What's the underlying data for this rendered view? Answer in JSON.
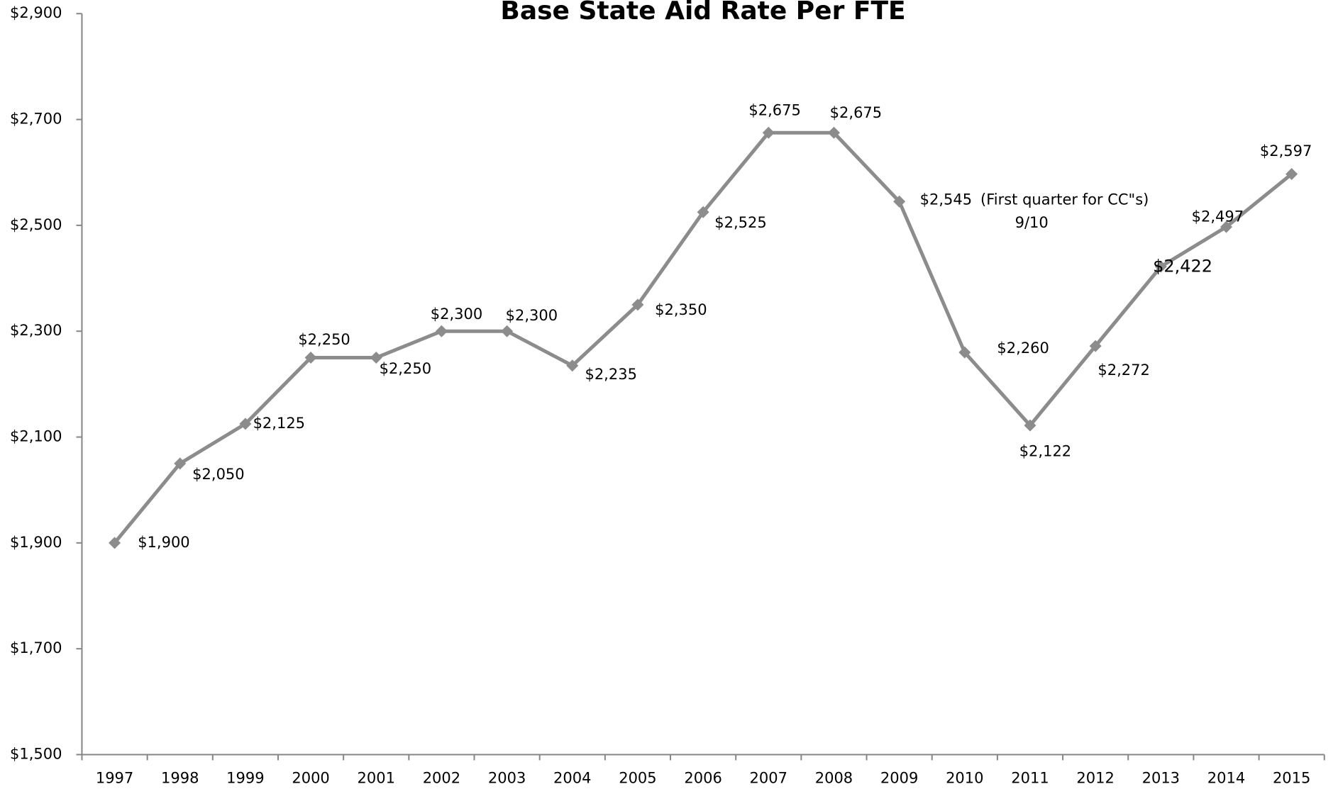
{
  "chart_data": {
    "type": "line",
    "title": "Base State Aid Rate Per FTE",
    "categories": [
      "1997",
      "1998",
      "1999",
      "2000",
      "2001",
      "2002",
      "2003",
      "2004",
      "2005",
      "2006",
      "2007",
      "2008",
      "2009",
      "2010",
      "2011",
      "2012",
      "2013",
      "2014",
      "2015"
    ],
    "series": [
      {
        "name": "Base State Aid Rate Per FTE",
        "color": "#8c8c8c",
        "values": [
          1900,
          2050,
          2125,
          2250,
          2250,
          2300,
          2300,
          2235,
          2350,
          2525,
          2675,
          2675,
          2545,
          2260,
          2122,
          2272,
          2422,
          2497,
          2597
        ],
        "value_labels": [
          "$1,900",
          "$2,050",
          "$2,125",
          "$2,250",
          "$2,250",
          "$2,300",
          "$2,300",
          "$2,235",
          "$2,350",
          "$2,525",
          "$2,675",
          "$2,675",
          "$2,545",
          "$2,260",
          "$2,122",
          "$2,272",
          "$2,422",
          "$2,497",
          "$2,597"
        ]
      }
    ],
    "annotation": [
      "(First quarter for CC\"s)",
      "9/10"
    ],
    "ylim": [
      1500,
      2900
    ],
    "yticks": [
      {
        "value": 1500,
        "label": "$1,500"
      },
      {
        "value": 1700,
        "label": "$1,700"
      },
      {
        "value": 1900,
        "label": "$1,900"
      },
      {
        "value": 2100,
        "label": "$2,100"
      },
      {
        "value": 2300,
        "label": "$2,300"
      },
      {
        "value": 2500,
        "label": "$2,500"
      },
      {
        "value": 2700,
        "label": "$2,700"
      },
      {
        "value": 2900,
        "label": "$2,900"
      }
    ],
    "grid": false
  }
}
